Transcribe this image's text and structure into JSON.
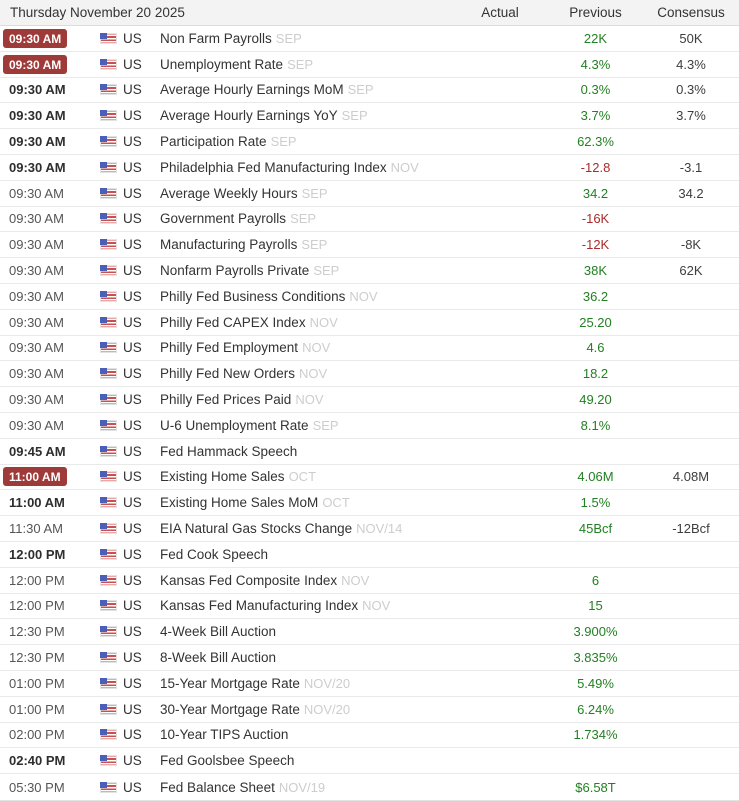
{
  "header": {
    "date_label": "Thursday November 20 2025",
    "columns": {
      "actual": "Actual",
      "previous": "Previous",
      "consensus": "Consensus"
    }
  },
  "colors": {
    "green": "#228022",
    "red": "#aa2b2b",
    "badge": "#9e3a38",
    "header_bg": "#f3f3f3"
  },
  "icons": {
    "flag": "us-flag-icon"
  },
  "rows": [
    {
      "time": "09:30 AM",
      "importance": "high",
      "country": "US",
      "event": "Non Farm Payrolls",
      "period": "SEP",
      "actual": "",
      "previous": "22K",
      "previous_color": "green",
      "consensus": "50K"
    },
    {
      "time": "09:30 AM",
      "importance": "high",
      "country": "US",
      "event": "Unemployment Rate",
      "period": "SEP",
      "actual": "",
      "previous": "4.3%",
      "previous_color": "green",
      "consensus": "4.3%"
    },
    {
      "time": "09:30 AM",
      "importance": "bold",
      "country": "US",
      "event": "Average Hourly Earnings MoM",
      "period": "SEP",
      "actual": "",
      "previous": "0.3%",
      "previous_color": "green",
      "consensus": "0.3%"
    },
    {
      "time": "09:30 AM",
      "importance": "bold",
      "country": "US",
      "event": "Average Hourly Earnings YoY",
      "period": "SEP",
      "actual": "",
      "previous": "3.7%",
      "previous_color": "green",
      "consensus": "3.7%"
    },
    {
      "time": "09:30 AM",
      "importance": "bold",
      "country": "US",
      "event": "Participation Rate",
      "period": "SEP",
      "actual": "",
      "previous": "62.3%",
      "previous_color": "green",
      "consensus": ""
    },
    {
      "time": "09:30 AM",
      "importance": "bold",
      "country": "US",
      "event": "Philadelphia Fed Manufacturing Index",
      "period": "NOV",
      "actual": "",
      "previous": "-12.8",
      "previous_color": "red",
      "consensus": "-3.1"
    },
    {
      "time": "09:30 AM",
      "importance": "normal",
      "country": "US",
      "event": "Average Weekly Hours",
      "period": "SEP",
      "actual": "",
      "previous": "34.2",
      "previous_color": "green",
      "consensus": "34.2"
    },
    {
      "time": "09:30 AM",
      "importance": "normal",
      "country": "US",
      "event": "Government Payrolls",
      "period": "SEP",
      "actual": "",
      "previous": "-16K",
      "previous_color": "red",
      "consensus": ""
    },
    {
      "time": "09:30 AM",
      "importance": "normal",
      "country": "US",
      "event": "Manufacturing Payrolls",
      "period": "SEP",
      "actual": "",
      "previous": "-12K",
      "previous_color": "red",
      "consensus": "-8K"
    },
    {
      "time": "09:30 AM",
      "importance": "normal",
      "country": "US",
      "event": "Nonfarm Payrolls Private",
      "period": "SEP",
      "actual": "",
      "previous": "38K",
      "previous_color": "green",
      "consensus": "62K"
    },
    {
      "time": "09:30 AM",
      "importance": "normal",
      "country": "US",
      "event": "Philly Fed Business Conditions",
      "period": "NOV",
      "actual": "",
      "previous": "36.2",
      "previous_color": "green",
      "consensus": ""
    },
    {
      "time": "09:30 AM",
      "importance": "normal",
      "country": "US",
      "event": "Philly Fed CAPEX Index",
      "period": "NOV",
      "actual": "",
      "previous": "25.20",
      "previous_color": "green",
      "consensus": ""
    },
    {
      "time": "09:30 AM",
      "importance": "normal",
      "country": "US",
      "event": "Philly Fed Employment",
      "period": "NOV",
      "actual": "",
      "previous": "4.6",
      "previous_color": "green",
      "consensus": ""
    },
    {
      "time": "09:30 AM",
      "importance": "normal",
      "country": "US",
      "event": "Philly Fed New Orders",
      "period": "NOV",
      "actual": "",
      "previous": "18.2",
      "previous_color": "green",
      "consensus": ""
    },
    {
      "time": "09:30 AM",
      "importance": "normal",
      "country": "US",
      "event": "Philly Fed Prices Paid",
      "period": "NOV",
      "actual": "",
      "previous": "49.20",
      "previous_color": "green",
      "consensus": ""
    },
    {
      "time": "09:30 AM",
      "importance": "normal",
      "country": "US",
      "event": "U-6 Unemployment Rate",
      "period": "SEP",
      "actual": "",
      "previous": "8.1%",
      "previous_color": "green",
      "consensus": ""
    },
    {
      "time": "09:45 AM",
      "importance": "bold",
      "country": "US",
      "event": "Fed Hammack Speech",
      "period": "",
      "actual": "",
      "previous": "",
      "previous_color": "",
      "consensus": ""
    },
    {
      "time": "11:00 AM",
      "importance": "high",
      "country": "US",
      "event": "Existing Home Sales",
      "period": "OCT",
      "actual": "",
      "previous": "4.06M",
      "previous_color": "green",
      "consensus": "4.08M"
    },
    {
      "time": "11:00 AM",
      "importance": "bold",
      "country": "US",
      "event": "Existing Home Sales MoM",
      "period": "OCT",
      "actual": "",
      "previous": "1.5%",
      "previous_color": "green",
      "consensus": ""
    },
    {
      "time": "11:30 AM",
      "importance": "normal",
      "country": "US",
      "event": "EIA Natural Gas Stocks Change",
      "period": "NOV/14",
      "actual": "",
      "previous": "45Bcf",
      "previous_color": "green",
      "consensus": "-12Bcf"
    },
    {
      "time": "12:00 PM",
      "importance": "bold",
      "country": "US",
      "event": "Fed Cook Speech",
      "period": "",
      "actual": "",
      "previous": "",
      "previous_color": "",
      "consensus": ""
    },
    {
      "time": "12:00 PM",
      "importance": "normal",
      "country": "US",
      "event": "Kansas Fed Composite Index",
      "period": "NOV",
      "actual": "",
      "previous": "6",
      "previous_color": "green",
      "consensus": ""
    },
    {
      "time": "12:00 PM",
      "importance": "normal",
      "country": "US",
      "event": "Kansas Fed Manufacturing Index",
      "period": "NOV",
      "actual": "",
      "previous": "15",
      "previous_color": "green",
      "consensus": ""
    },
    {
      "time": "12:30 PM",
      "importance": "normal",
      "country": "US",
      "event": "4-Week Bill Auction",
      "period": "",
      "actual": "",
      "previous": "3.900%",
      "previous_color": "green",
      "consensus": ""
    },
    {
      "time": "12:30 PM",
      "importance": "normal",
      "country": "US",
      "event": "8-Week Bill Auction",
      "period": "",
      "actual": "",
      "previous": "3.835%",
      "previous_color": "green",
      "consensus": ""
    },
    {
      "time": "01:00 PM",
      "importance": "normal",
      "country": "US",
      "event": "15-Year Mortgage Rate",
      "period": "NOV/20",
      "actual": "",
      "previous": "5.49%",
      "previous_color": "green",
      "consensus": ""
    },
    {
      "time": "01:00 PM",
      "importance": "normal",
      "country": "US",
      "event": "30-Year Mortgage Rate",
      "period": "NOV/20",
      "actual": "",
      "previous": "6.24%",
      "previous_color": "green",
      "consensus": ""
    },
    {
      "time": "02:00 PM",
      "importance": "normal",
      "country": "US",
      "event": "10-Year TIPS Auction",
      "period": "",
      "actual": "",
      "previous": "1.734%",
      "previous_color": "green",
      "consensus": ""
    },
    {
      "time": "02:40 PM",
      "importance": "bold",
      "country": "US",
      "event": "Fed Goolsbee Speech",
      "period": "",
      "actual": "",
      "previous": "",
      "previous_color": "",
      "consensus": ""
    },
    {
      "time": "05:30 PM",
      "importance": "normal",
      "country": "US",
      "event": "Fed Balance Sheet",
      "period": "NOV/19",
      "actual": "",
      "previous": "$6.58T",
      "previous_color": "green",
      "consensus": ""
    }
  ]
}
